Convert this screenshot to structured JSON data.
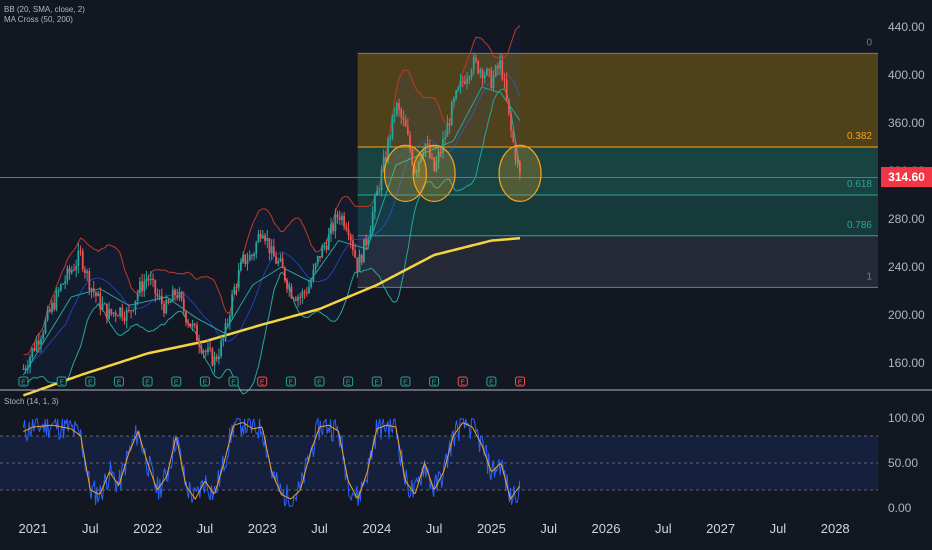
{
  "indicators": {
    "bb": "BB (20, SMA, close, 2)",
    "ma_cross": "MA Cross (50, 200)",
    "stoch": "Stoch (14, 1, 3)"
  },
  "last_price": "314.60",
  "colors": {
    "background": "#131722",
    "bull": "#26a69a",
    "bear": "#ef5350",
    "bb_upper": "#c0392b",
    "bb_lower": "#26a69a",
    "bb_basis": "#2962ff",
    "ma50": "#26a69a",
    "ma200": "#f5d542",
    "stoch_k": "#2962ff",
    "stoch_d": "#f7a21b",
    "price_line": "#f23645",
    "circles": "#f7a21b"
  },
  "chart_data": {
    "type": "candlestick",
    "price_axis": {
      "ticks": [
        "440.00",
        "400.00",
        "360.00",
        "320.00",
        "280.00",
        "240.00",
        "200.00",
        "160.00"
      ],
      "values": [
        440,
        400,
        360,
        320,
        280,
        240,
        200,
        160
      ],
      "range": [
        132,
        448
      ]
    },
    "time_axis": {
      "ticks": [
        "2021",
        "Jul",
        "2022",
        "Jul",
        "2023",
        "Jul",
        "2024",
        "Jul",
        "2025",
        "Jul",
        "2026",
        "Jul",
        "2027",
        "Jul",
        "2028"
      ],
      "dates": [
        "2021-01",
        "2021-07",
        "2022-01",
        "2022-07",
        "2023-01",
        "2023-07",
        "2024-01",
        "2024-07",
        "2025-01",
        "2025-07",
        "2026-01",
        "2026-07",
        "2027-01",
        "2027-07",
        "2028-01"
      ]
    },
    "price_path": [
      [
        "2020-12",
        155
      ],
      [
        "2021-02",
        188
      ],
      [
        "2021-04",
        225
      ],
      [
        "2021-06",
        250
      ],
      [
        "2021-07",
        225
      ],
      [
        "2021-08",
        210
      ],
      [
        "2021-09",
        200
      ],
      [
        "2021-10",
        205
      ],
      [
        "2021-11",
        200
      ],
      [
        "2021-12",
        220
      ],
      [
        "2022-01",
        232
      ],
      [
        "2022-02",
        215
      ],
      [
        "2022-03",
        205
      ],
      [
        "2022-04",
        220
      ],
      [
        "2022-05",
        200
      ],
      [
        "2022-06",
        185
      ],
      [
        "2022-07",
        170
      ],
      [
        "2022-08",
        162
      ],
      [
        "2022-09",
        180
      ],
      [
        "2022-10",
        220
      ],
      [
        "2022-11",
        245
      ],
      [
        "2022-12",
        250
      ],
      [
        "2023-01",
        275
      ],
      [
        "2023-02",
        250
      ],
      [
        "2023-03",
        240
      ],
      [
        "2023-04",
        220
      ],
      [
        "2023-05",
        215
      ],
      [
        "2023-06",
        225
      ],
      [
        "2023-07",
        250
      ],
      [
        "2023-08",
        265
      ],
      [
        "2023-09",
        285
      ],
      [
        "2023-10",
        275
      ],
      [
        "2023-11",
        240
      ],
      [
        "2023-12",
        265
      ],
      [
        "2024-01",
        300
      ],
      [
        "2024-02",
        335
      ],
      [
        "2024-03",
        375
      ],
      [
        "2024-04",
        355
      ],
      [
        "2024-05",
        320
      ],
      [
        "2024-06",
        345
      ],
      [
        "2024-07",
        320
      ],
      [
        "2024-08",
        345
      ],
      [
        "2024-09",
        375
      ],
      [
        "2024-10",
        395
      ],
      [
        "2024-11",
        410
      ],
      [
        "2024-12",
        405
      ],
      [
        "2025-01",
        395
      ],
      [
        "2025-02",
        410
      ],
      [
        "2025-03",
        355
      ],
      [
        "2025-04",
        315
      ]
    ],
    "ma200": [
      [
        "2020-12",
        133
      ],
      [
        "2021-06",
        150
      ],
      [
        "2022-01",
        168
      ],
      [
        "2022-07",
        178
      ],
      [
        "2023-01",
        192
      ],
      [
        "2023-07",
        205
      ],
      [
        "2024-01",
        225
      ],
      [
        "2024-07",
        250
      ],
      [
        "2025-01",
        262
      ],
      [
        "2025-04",
        264
      ]
    ],
    "ma50": [
      [
        "2020-12",
        150
      ],
      [
        "2021-05",
        215
      ],
      [
        "2021-08",
        222
      ],
      [
        "2021-11",
        208
      ],
      [
        "2022-03",
        215
      ],
      [
        "2022-06",
        198
      ],
      [
        "2022-09",
        185
      ],
      [
        "2022-12",
        225
      ],
      [
        "2023-03",
        240
      ],
      [
        "2023-06",
        228
      ],
      [
        "2023-09",
        262
      ],
      [
        "2023-12",
        255
      ],
      [
        "2024-03",
        325
      ],
      [
        "2024-06",
        335
      ],
      [
        "2024-09",
        345
      ],
      [
        "2024-12",
        390
      ],
      [
        "2025-02",
        385
      ],
      [
        "2025-04",
        362
      ]
    ],
    "fibonacci": {
      "levels": [
        {
          "ratio": "0",
          "price": 418
        },
        {
          "ratio": "0.382",
          "price": 340
        },
        {
          "ratio": "0.618",
          "price": 300
        },
        {
          "ratio": "0.786",
          "price": 266
        },
        {
          "ratio": "1",
          "price": 223
        }
      ],
      "start": "2023-11",
      "zone_colors": [
        "#5a4a1a",
        "#1b4b45",
        "#173f3e",
        "#2a2e39"
      ]
    },
    "horizontal_line": 314.6,
    "circles": [
      {
        "date": "2024-04",
        "price": 318
      },
      {
        "date": "2024-07",
        "price": 318
      },
      {
        "date": "2025-04",
        "price": 318
      }
    ],
    "earnings_markers": [
      {
        "date": "2020-12",
        "label": "E",
        "color": "#26a69a"
      },
      {
        "date": "2021-04",
        "label": "E",
        "color": "#26a69a"
      },
      {
        "date": "2021-07",
        "label": "E",
        "color": "#26a69a"
      },
      {
        "date": "2021-10",
        "label": "E",
        "color": "#26a69a"
      },
      {
        "date": "2022-01",
        "label": "E",
        "color": "#26a69a"
      },
      {
        "date": "2022-04",
        "label": "E",
        "color": "#26a69a"
      },
      {
        "date": "2022-07",
        "label": "E",
        "color": "#26a69a"
      },
      {
        "date": "2022-10",
        "label": "E",
        "color": "#26a69a"
      },
      {
        "date": "2023-01",
        "label": "E",
        "color": "#ef5350"
      },
      {
        "date": "2023-04",
        "label": "E",
        "color": "#26a69a"
      },
      {
        "date": "2023-07",
        "label": "E",
        "color": "#26a69a"
      },
      {
        "date": "2023-10",
        "label": "E",
        "color": "#26a69a"
      },
      {
        "date": "2024-01",
        "label": "E",
        "color": "#26a69a"
      },
      {
        "date": "2024-04",
        "label": "E",
        "color": "#26a69a"
      },
      {
        "date": "2024-07",
        "label": "E",
        "color": "#26a69a"
      },
      {
        "date": "2024-10",
        "label": "E",
        "color": "#ef5350"
      },
      {
        "date": "2025-01",
        "label": "E",
        "color": "#26a69a"
      },
      {
        "date": "2025-04",
        "label": "E",
        "color": "#ef5350"
      }
    ],
    "stochastic": {
      "ticks": [
        "100.00",
        "50.00",
        "0.00"
      ],
      "values": [
        100,
        50,
        0
      ],
      "band": [
        20,
        80
      ],
      "d_path": [
        [
          "2020-12",
          85
        ],
        [
          "2021-01",
          90
        ],
        [
          "2021-03",
          92
        ],
        [
          "2021-05",
          88
        ],
        [
          "2021-06",
          80
        ],
        [
          "2021-07",
          20
        ],
        [
          "2021-08",
          15
        ],
        [
          "2021-09",
          40
        ],
        [
          "2021-10",
          25
        ],
        [
          "2021-11",
          60
        ],
        [
          "2021-12",
          85
        ],
        [
          "2022-01",
          50
        ],
        [
          "2022-02",
          20
        ],
        [
          "2022-03",
          35
        ],
        [
          "2022-04",
          80
        ],
        [
          "2022-05",
          25
        ],
        [
          "2022-06",
          10
        ],
        [
          "2022-07",
          30
        ],
        [
          "2022-08",
          15
        ],
        [
          "2022-09",
          50
        ],
        [
          "2022-10",
          92
        ],
        [
          "2022-11",
          95
        ],
        [
          "2022-12",
          88
        ],
        [
          "2023-01",
          90
        ],
        [
          "2023-02",
          40
        ],
        [
          "2023-03",
          15
        ],
        [
          "2023-04",
          10
        ],
        [
          "2023-05",
          20
        ],
        [
          "2023-06",
          60
        ],
        [
          "2023-07",
          90
        ],
        [
          "2023-08",
          92
        ],
        [
          "2023-09",
          85
        ],
        [
          "2023-10",
          30
        ],
        [
          "2023-11",
          10
        ],
        [
          "2023-12",
          40
        ],
        [
          "2024-01",
          88
        ],
        [
          "2024-02",
          92
        ],
        [
          "2024-03",
          90
        ],
        [
          "2024-04",
          30
        ],
        [
          "2024-05",
          15
        ],
        [
          "2024-06",
          50
        ],
        [
          "2024-07",
          20
        ],
        [
          "2024-08",
          40
        ],
        [
          "2024-09",
          80
        ],
        [
          "2024-10",
          95
        ],
        [
          "2024-11",
          90
        ],
        [
          "2024-12",
          70
        ],
        [
          "2025-01",
          40
        ],
        [
          "2025-02",
          50
        ],
        [
          "2025-03",
          10
        ],
        [
          "2025-04",
          25
        ]
      ]
    }
  }
}
